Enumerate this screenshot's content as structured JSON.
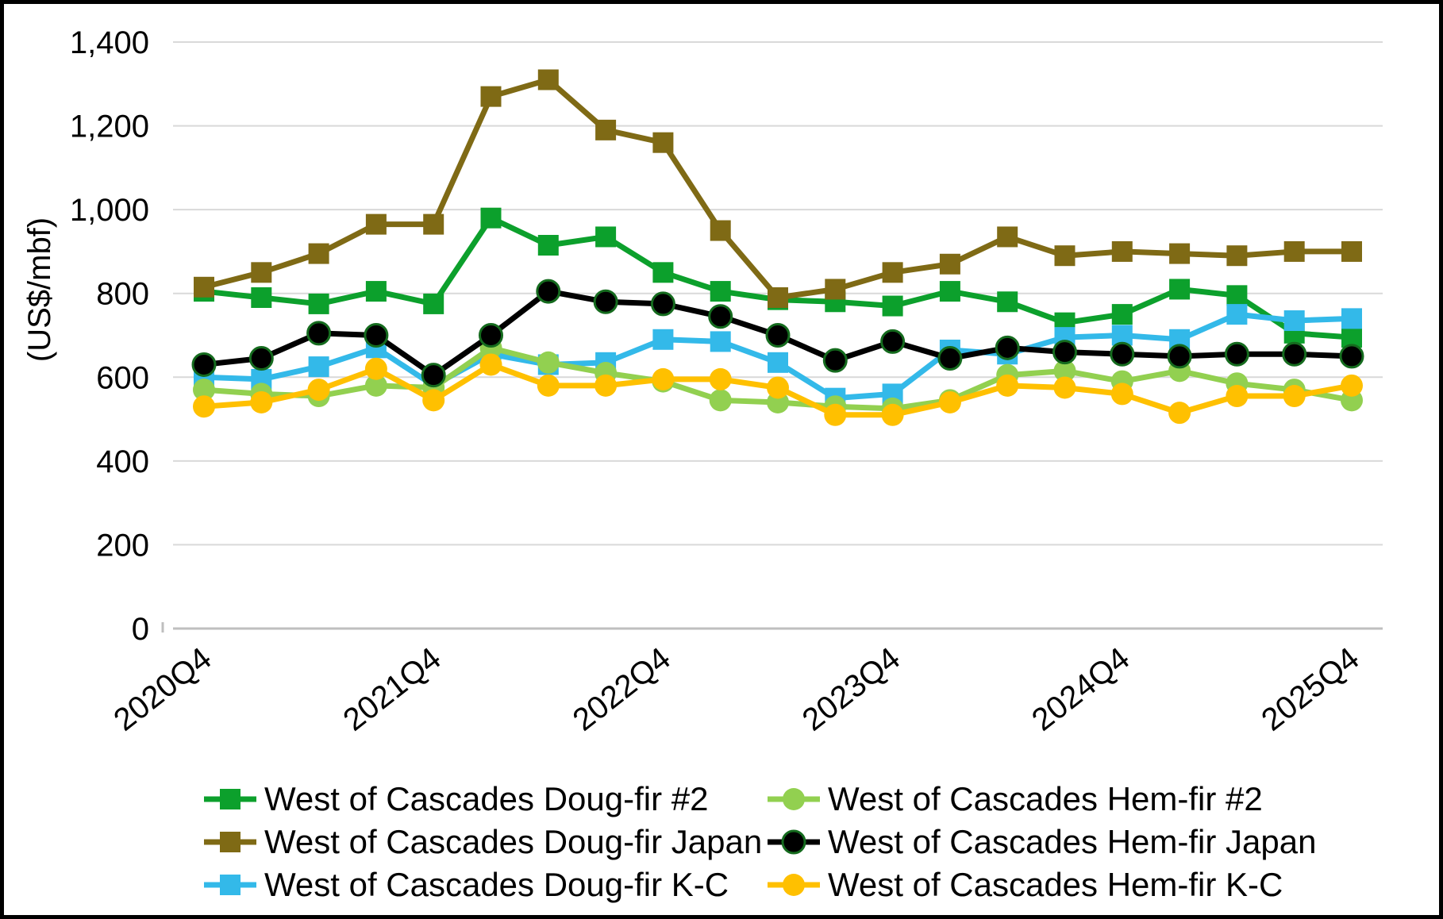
{
  "figure": {
    "background": "#FFFFFF",
    "border_color": "#000000",
    "gridline_color": "#D9D9D9",
    "axisline_color": "#BFBFBF"
  },
  "y_axis": {
    "title": "(US$/mbf)",
    "tick_labels": [
      "0",
      "200",
      "400",
      "600",
      "800",
      "1,000",
      "1,200",
      "1,400"
    ],
    "min": 0,
    "max": 1400,
    "step": 200
  },
  "x_axis": {
    "shown_tick_labels": [
      "2020Q4",
      "2021Q4",
      "2022Q4",
      "2023Q4",
      "2024Q4",
      "2025Q4"
    ],
    "shown_tick_indices": [
      0,
      4,
      8,
      12,
      16,
      20
    ]
  },
  "legend": {
    "position": "bottom",
    "columns": [
      [
        "West of Cascades Doug-fir #2",
        "West of Cascades Doug-fir Japan",
        "West of Cascades Doug-fir K-C"
      ],
      [
        "West of Cascades Hem-fir #2",
        "West of Cascades Hem-fir Japan",
        "West of Cascades Hem-fir K-C"
      ]
    ]
  },
  "chart_data": {
    "type": "line",
    "title": "",
    "xlabel": "",
    "ylabel": "(US$/mbf)",
    "ylim": [
      0,
      1400
    ],
    "grid": true,
    "legend_position": "bottom",
    "x": [
      "2020Q4",
      "2021Q1",
      "2021Q2",
      "2021Q3",
      "2021Q4",
      "2022Q1",
      "2022Q2",
      "2022Q3",
      "2022Q4",
      "2023Q1",
      "2023Q2",
      "2023Q3",
      "2023Q4",
      "2024Q1",
      "2024Q2",
      "2024Q3",
      "2024Q4",
      "2025Q1",
      "2025Q2",
      "2025Q3",
      "2025Q4"
    ],
    "series": [
      {
        "name": "West of Cascades Doug-fir #2",
        "color": "#0CA02C",
        "marker": "square",
        "values": [
          805,
          790,
          775,
          805,
          775,
          980,
          915,
          935,
          850,
          805,
          785,
          780,
          770,
          805,
          780,
          730,
          750,
          810,
          795,
          705,
          695
        ]
      },
      {
        "name": "West of Cascades Doug-fir Japan",
        "color": "#7F6A15",
        "marker": "square",
        "values": [
          815,
          850,
          895,
          965,
          965,
          1270,
          1310,
          1190,
          1160,
          950,
          790,
          810,
          850,
          870,
          935,
          890,
          900,
          895,
          890,
          900,
          900
        ]
      },
      {
        "name": "West of Cascades Doug-fir K-C",
        "color": "#33B9E9",
        "marker": "square",
        "values": [
          600,
          595,
          625,
          670,
          580,
          655,
          630,
          635,
          690,
          685,
          635,
          550,
          560,
          665,
          655,
          695,
          700,
          690,
          750,
          735,
          740
        ]
      },
      {
        "name": "West of Cascades Hem-fir #2",
        "color": "#92D050",
        "marker": "circle",
        "values": [
          570,
          560,
          555,
          580,
          575,
          670,
          635,
          610,
          590,
          545,
          540,
          530,
          525,
          545,
          605,
          615,
          590,
          615,
          585,
          570,
          545
        ]
      },
      {
        "name": "West of Cascades Hem-fir Japan",
        "color": "#000000",
        "marker": "circle",
        "marker_edge": "#156B1E",
        "values": [
          630,
          645,
          705,
          700,
          605,
          700,
          805,
          780,
          775,
          745,
          700,
          640,
          685,
          645,
          670,
          660,
          655,
          650,
          655,
          655,
          650
        ]
      },
      {
        "name": "West of Cascades Hem-fir K-C",
        "color": "#FFC000",
        "marker": "circle",
        "values": [
          530,
          540,
          570,
          620,
          545,
          630,
          580,
          580,
          595,
          595,
          575,
          510,
          510,
          540,
          580,
          575,
          560,
          515,
          555,
          555,
          580
        ]
      }
    ]
  }
}
